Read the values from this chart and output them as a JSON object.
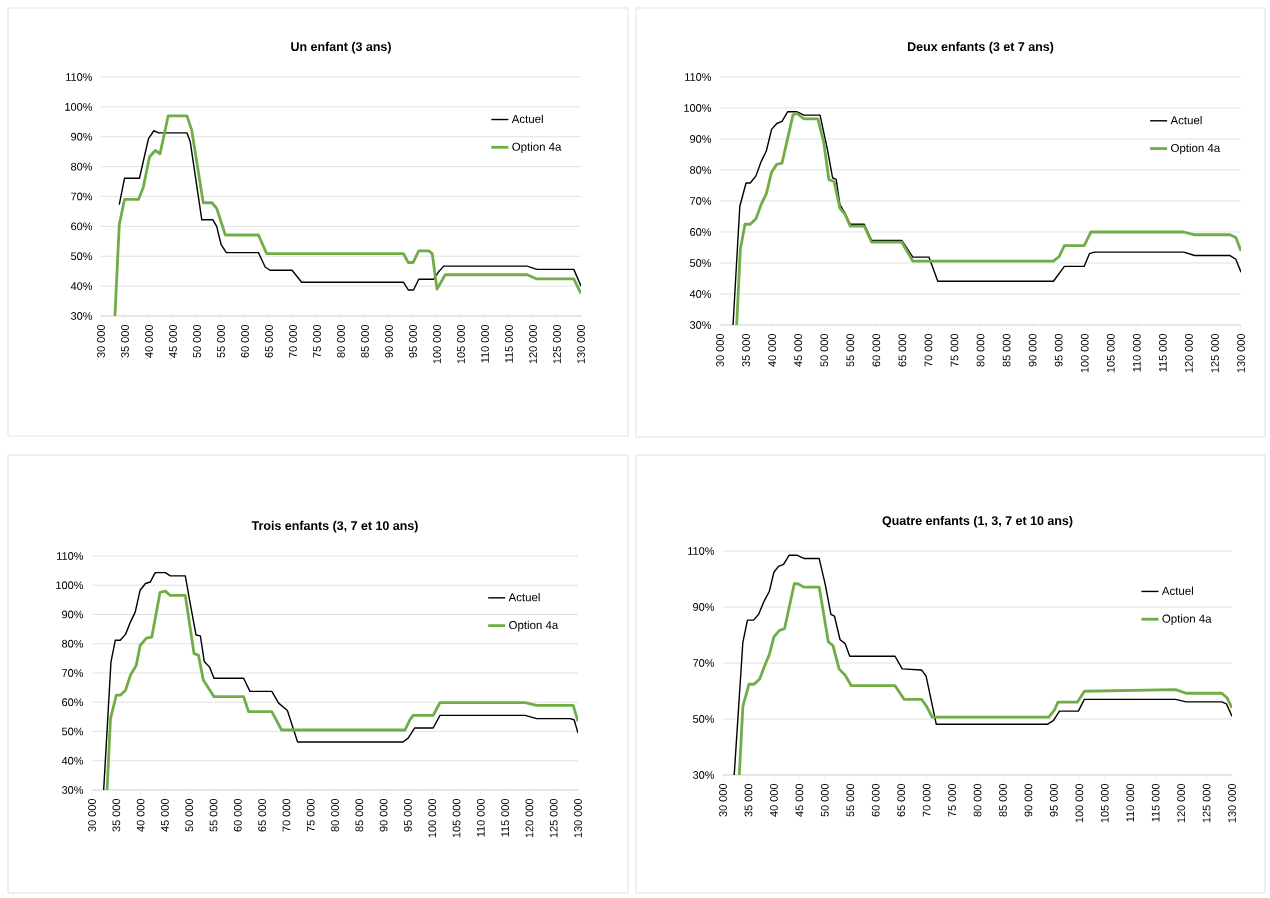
{
  "chart_data": [
    {
      "type": "line",
      "title": "Un enfant (3 ans)",
      "xlim": [
        30000,
        130000
      ],
      "ylim": [
        30,
        110
      ],
      "xticks": [
        {
          "value": 30000,
          "label": "30 000"
        },
        {
          "value": 35000,
          "label": "35 000"
        },
        {
          "value": 40000,
          "label": "40 000"
        },
        {
          "value": 45000,
          "label": "45 000"
        },
        {
          "value": 50000,
          "label": "50 000"
        },
        {
          "value": 55000,
          "label": "55 000"
        },
        {
          "value": 60000,
          "label": "60 000"
        },
        {
          "value": 65000,
          "label": "65 000"
        },
        {
          "value": 70000,
          "label": "70 000"
        },
        {
          "value": 75000,
          "label": "75 000"
        },
        {
          "value": 80000,
          "label": "80 000"
        },
        {
          "value": 85000,
          "label": "85 000"
        },
        {
          "value": 90000,
          "label": "90 000"
        },
        {
          "value": 95000,
          "label": "95 000"
        },
        {
          "value": 100000,
          "label": "100 000"
        },
        {
          "value": 105000,
          "label": "105 000"
        },
        {
          "value": 110000,
          "label": "110 000"
        },
        {
          "value": 115000,
          "label": "115 000"
        },
        {
          "value": 120000,
          "label": "120 000"
        },
        {
          "value": 125000,
          "label": "125 000"
        },
        {
          "value": 130000,
          "label": "130 000"
        }
      ],
      "yticks": [
        {
          "value": 30,
          "label": "30%"
        },
        {
          "value": 40,
          "label": "40%"
        },
        {
          "value": 50,
          "label": "50%"
        },
        {
          "value": 60,
          "label": "60%"
        },
        {
          "value": 70,
          "label": "70%"
        },
        {
          "value": 80,
          "label": "80%"
        },
        {
          "value": 90,
          "label": "90%"
        },
        {
          "value": 100,
          "label": "100%"
        },
        {
          "value": 110,
          "label": "110%"
        }
      ],
      "grid": "y",
      "legend": "top right",
      "marker": "none",
      "line_style": "solid",
      "series": [
        {
          "name": "Actuel",
          "color": "#000000",
          "x": [
            33800,
            34900,
            38000,
            39900,
            41000,
            42000,
            47900,
            48600,
            51000,
            53300,
            54100,
            55000,
            56100,
            62800,
            64200,
            65200,
            69800,
            71800,
            93000,
            94000,
            95100,
            96200,
            99300,
            100300,
            101400,
            118800,
            120800,
            128500,
            130000
          ],
          "values": [
            67.3,
            76.1,
            76.1,
            89.4,
            92,
            91.3,
            91.3,
            88.2,
            62.2,
            62.2,
            60,
            54,
            51.2,
            51.2,
            46.4,
            45.3,
            45.3,
            41.3,
            41.3,
            38.7,
            38.7,
            42.3,
            42.3,
            44.7,
            46.7,
            46.7,
            45.6,
            45.6,
            40
          ]
        },
        {
          "name": "Option 4a",
          "color": "#70ad47",
          "x": [
            32900,
            33800,
            34900,
            37800,
            38800,
            40100,
            41300,
            42300,
            44000,
            47900,
            48900,
            51300,
            53100,
            54100,
            55900,
            62800,
            64500,
            93000,
            94000,
            95000,
            96200,
            98300,
            99000,
            100000,
            101700,
            118800,
            120800,
            128500,
            130000
          ],
          "values": [
            30,
            60.5,
            69,
            69,
            73,
            83.2,
            85.4,
            84.3,
            97,
            97,
            92.2,
            67.9,
            67.9,
            66,
            57.1,
            57.1,
            50.9,
            50.9,
            47.9,
            47.9,
            51.8,
            51.8,
            50.9,
            39,
            43.8,
            43.8,
            42.4,
            42.4,
            37.5
          ]
        }
      ]
    },
    {
      "type": "line",
      "title": "Deux enfants (3 et 7 ans)",
      "xlim": [
        30000,
        130000
      ],
      "ylim": [
        30,
        110
      ],
      "xticks": [
        {
          "value": 30000,
          "label": "30 000"
        },
        {
          "value": 35000,
          "label": "35 000"
        },
        {
          "value": 40000,
          "label": "40 000"
        },
        {
          "value": 45000,
          "label": "45 000"
        },
        {
          "value": 50000,
          "label": "50 000"
        },
        {
          "value": 55000,
          "label": "55 000"
        },
        {
          "value": 60000,
          "label": "60 000"
        },
        {
          "value": 65000,
          "label": "65 000"
        },
        {
          "value": 70000,
          "label": "70 000"
        },
        {
          "value": 75000,
          "label": "75 000"
        },
        {
          "value": 80000,
          "label": "80 000"
        },
        {
          "value": 85000,
          "label": "85 000"
        },
        {
          "value": 90000,
          "label": "90 000"
        },
        {
          "value": 95000,
          "label": "95 000"
        },
        {
          "value": 100000,
          "label": "100 000"
        },
        {
          "value": 105000,
          "label": "105 000"
        },
        {
          "value": 110000,
          "label": "110 000"
        },
        {
          "value": 115000,
          "label": "115 000"
        },
        {
          "value": 120000,
          "label": "120 000"
        },
        {
          "value": 125000,
          "label": "125 000"
        },
        {
          "value": 130000,
          "label": "130 000"
        }
      ],
      "yticks": [
        {
          "value": 30,
          "label": "30%"
        },
        {
          "value": 40,
          "label": "40%"
        },
        {
          "value": 50,
          "label": "50%"
        },
        {
          "value": 60,
          "label": "60%"
        },
        {
          "value": 70,
          "label": "70%"
        },
        {
          "value": 80,
          "label": "80%"
        },
        {
          "value": 90,
          "label": "90%"
        },
        {
          "value": 100,
          "label": "100%"
        },
        {
          "value": 110,
          "label": "110%"
        }
      ],
      "grid": "y",
      "legend": "top right",
      "marker": "none",
      "line_style": "solid",
      "series": [
        {
          "name": "Actuel",
          "color": "#000000",
          "x": [
            32500,
            33800,
            35000,
            35800,
            36900,
            37900,
            38900,
            39900,
            40900,
            41900,
            43000,
            44700,
            46100,
            49200,
            50600,
            51600,
            52300,
            53000,
            54000,
            55000,
            57700,
            59100,
            64900,
            67000,
            70100,
            71800,
            94000,
            96100,
            99900,
            100900,
            101900,
            119000,
            121100,
            127900,
            129000,
            130000
          ],
          "values": [
            30,
            68.3,
            75.8,
            75.8,
            78.1,
            82.7,
            86.2,
            93.1,
            95,
            95.7,
            98.8,
            98.8,
            97.7,
            97.7,
            86.7,
            77.5,
            77,
            68.9,
            66,
            62.5,
            62.5,
            57.3,
            57.3,
            51.9,
            51.9,
            44.1,
            44.1,
            48.9,
            48.9,
            53,
            53.5,
            53.5,
            52.4,
            52.4,
            51.2,
            47
          ]
        },
        {
          "name": "Option 4a",
          "color": "#70ad47",
          "x": [
            33200,
            33900,
            34800,
            35800,
            36900,
            37900,
            38900,
            39900,
            40900,
            41900,
            44000,
            44700,
            46100,
            48800,
            49900,
            50900,
            51900,
            53000,
            54000,
            55000,
            57700,
            59100,
            64900,
            67000,
            94000,
            95100,
            96100,
            99900,
            101200,
            119000,
            121100,
            127900,
            129000,
            130000
          ],
          "values": [
            30,
            54.5,
            62.5,
            62.5,
            64.3,
            68.9,
            72.4,
            79.3,
            81.8,
            82.2,
            97.7,
            98.3,
            96.5,
            96.5,
            89,
            76.9,
            76.3,
            67.7,
            65.7,
            61.9,
            61.9,
            56.7,
            56.7,
            50.6,
            50.6,
            52.1,
            55.6,
            55.6,
            60,
            60,
            59.1,
            59.1,
            58.2,
            53.9
          ]
        }
      ]
    },
    {
      "type": "line",
      "title": "Trois enfants (3, 7 et 10 ans)",
      "xlim": [
        30000,
        130000
      ],
      "ylim": [
        30,
        110
      ],
      "xticks": [
        {
          "value": 30000,
          "label": "30 000"
        },
        {
          "value": 35000,
          "label": "35 000"
        },
        {
          "value": 40000,
          "label": "40 000"
        },
        {
          "value": 45000,
          "label": "45 000"
        },
        {
          "value": 50000,
          "label": "50 000"
        },
        {
          "value": 55000,
          "label": "55 000"
        },
        {
          "value": 60000,
          "label": "60 000"
        },
        {
          "value": 65000,
          "label": "65 000"
        },
        {
          "value": 70000,
          "label": "70 000"
        },
        {
          "value": 75000,
          "label": "75 000"
        },
        {
          "value": 80000,
          "label": "80 000"
        },
        {
          "value": 85000,
          "label": "85 000"
        },
        {
          "value": 90000,
          "label": "90 000"
        },
        {
          "value": 95000,
          "label": "95 000"
        },
        {
          "value": 100000,
          "label": "100 000"
        },
        {
          "value": 105000,
          "label": "105 000"
        },
        {
          "value": 110000,
          "label": "110 000"
        },
        {
          "value": 115000,
          "label": "115 000"
        },
        {
          "value": 120000,
          "label": "120 000"
        },
        {
          "value": 125000,
          "label": "125 000"
        },
        {
          "value": 130000,
          "label": "130 000"
        }
      ],
      "yticks": [
        {
          "value": 30,
          "label": "30%"
        },
        {
          "value": 40,
          "label": "40%"
        },
        {
          "value": 50,
          "label": "50%"
        },
        {
          "value": 60,
          "label": "60%"
        },
        {
          "value": 70,
          "label": "70%"
        },
        {
          "value": 80,
          "label": "80%"
        },
        {
          "value": 90,
          "label": "90%"
        },
        {
          "value": 100,
          "label": "100%"
        },
        {
          "value": 110,
          "label": "110%"
        }
      ],
      "grid": "y",
      "legend": "top right",
      "marker": "none",
      "line_style": "solid",
      "series": [
        {
          "name": "Actuel",
          "color": "#000000",
          "x": [
            32400,
            33900,
            34800,
            35800,
            36900,
            37900,
            38900,
            39900,
            41000,
            42000,
            43000,
            45100,
            46100,
            49200,
            50200,
            51400,
            52300,
            53100,
            54200,
            55100,
            61200,
            62500,
            67000,
            68400,
            70200,
            72300,
            94000,
            95100,
            96400,
            100200,
            101600,
            119100,
            121500,
            128300,
            129200,
            130000
          ],
          "values": [
            30,
            73.8,
            81.2,
            81.2,
            83.2,
            87.4,
            90.9,
            98.3,
            100.6,
            101.1,
            104.3,
            104.3,
            103.2,
            103.2,
            93.8,
            83,
            82.7,
            73.9,
            72,
            68.2,
            68.2,
            63.7,
            63.7,
            59.7,
            57.2,
            46.4,
            46.4,
            47.8,
            51.2,
            51.2,
            55.5,
            55.5,
            54.4,
            54.4,
            54,
            49.5
          ]
        },
        {
          "name": "Option 4a",
          "color": "#70ad47",
          "x": [
            33100,
            33800,
            35000,
            35800,
            36900,
            37900,
            39100,
            39900,
            41200,
            42300,
            44000,
            45100,
            46100,
            49200,
            51000,
            51900,
            52900,
            53800,
            55100,
            61200,
            62200,
            67000,
            69000,
            94400,
            95400,
            96100,
            100200,
            101600,
            119100,
            121500,
            129000,
            130000
          ],
          "values": [
            30,
            54.4,
            62.4,
            62.4,
            64.1,
            69.2,
            72.6,
            79.4,
            81.9,
            82.3,
            97.6,
            98,
            96.5,
            96.5,
            76.6,
            76.1,
            67.6,
            65.3,
            61.9,
            61.9,
            56.8,
            56.8,
            50.5,
            50.5,
            54,
            55.5,
            55.5,
            59.9,
            59.9,
            58.9,
            58.9,
            53.5
          ]
        }
      ]
    },
    {
      "type": "line",
      "title": "Quatre enfants (1, 3, 7 et 10 ans)",
      "xlim": [
        30000,
        130000
      ],
      "ylim": [
        30,
        110
      ],
      "xticks": [
        {
          "value": 30000,
          "label": "30 000"
        },
        {
          "value": 35000,
          "label": "35 000"
        },
        {
          "value": 40000,
          "label": "40 000"
        },
        {
          "value": 45000,
          "label": "45 000"
        },
        {
          "value": 50000,
          "label": "50 000"
        },
        {
          "value": 55000,
          "label": "55 000"
        },
        {
          "value": 60000,
          "label": "60 000"
        },
        {
          "value": 65000,
          "label": "65 000"
        },
        {
          "value": 70000,
          "label": "70 000"
        },
        {
          "value": 75000,
          "label": "75 000"
        },
        {
          "value": 80000,
          "label": "80 000"
        },
        {
          "value": 85000,
          "label": "85 000"
        },
        {
          "value": 90000,
          "label": "90 000"
        },
        {
          "value": 95000,
          "label": "95 000"
        },
        {
          "value": 100000,
          "label": "100 000"
        },
        {
          "value": 105000,
          "label": "105 000"
        },
        {
          "value": 110000,
          "label": "110 000"
        },
        {
          "value": 115000,
          "label": "115 000"
        },
        {
          "value": 120000,
          "label": "120 000"
        },
        {
          "value": 125000,
          "label": "125 000"
        },
        {
          "value": 130000,
          "label": "130 000"
        }
      ],
      "yticks": [
        {
          "value": 30,
          "label": "30%"
        },
        {
          "value": 50,
          "label": "50%"
        },
        {
          "value": 70,
          "label": "70%"
        },
        {
          "value": 90,
          "label": "90%"
        },
        {
          "value": 110,
          "label": "110%"
        }
      ],
      "grid": "y",
      "legend": "top right",
      "marker": "none",
      "line_style": "solid",
      "series": [
        {
          "name": "Actuel",
          "color": "#000000",
          "x": [
            32200,
            33900,
            34800,
            36000,
            37000,
            38100,
            39100,
            40000,
            40900,
            41900,
            43000,
            44500,
            46000,
            48900,
            50100,
            51200,
            51900,
            53000,
            54000,
            54900,
            63800,
            65200,
            69000,
            69900,
            71900,
            93700,
            94900,
            96100,
            99800,
            101000,
            118900,
            121000,
            128000,
            128900,
            130000
          ],
          "values": [
            30,
            77.4,
            85.3,
            85.3,
            87.4,
            92.2,
            95.6,
            102.4,
            104.5,
            105.2,
            108.5,
            108.5,
            107.3,
            107.3,
            97.9,
            87.4,
            86.7,
            78.3,
            76.9,
            72.4,
            72.4,
            67.9,
            67.5,
            65.3,
            48.1,
            48.1,
            49.4,
            52.8,
            52.8,
            57,
            57,
            56.1,
            56.1,
            55.4,
            51
          ]
        },
        {
          "name": "Option 4a",
          "color": "#70ad47",
          "x": [
            33200,
            33900,
            35100,
            36100,
            37200,
            38200,
            39100,
            40000,
            41000,
            42100,
            44000,
            44700,
            45900,
            48900,
            50700,
            51600,
            52800,
            54000,
            55200,
            63800,
            65600,
            69000,
            69900,
            71100,
            94000,
            95100,
            95800,
            99600,
            101000,
            118900,
            121000,
            128000,
            129000,
            130000
          ],
          "values": [
            30,
            54.5,
            62.4,
            62.4,
            64.3,
            69.1,
            73,
            79.3,
            81.5,
            82.3,
            98.3,
            98.3,
            97.1,
            97.1,
            77.5,
            76.2,
            67.9,
            65.6,
            61.9,
            61.9,
            57,
            57,
            54.8,
            50.7,
            50.7,
            53.2,
            56,
            56,
            59.9,
            60.5,
            59.2,
            59.2,
            57.6,
            54
          ]
        }
      ]
    }
  ]
}
